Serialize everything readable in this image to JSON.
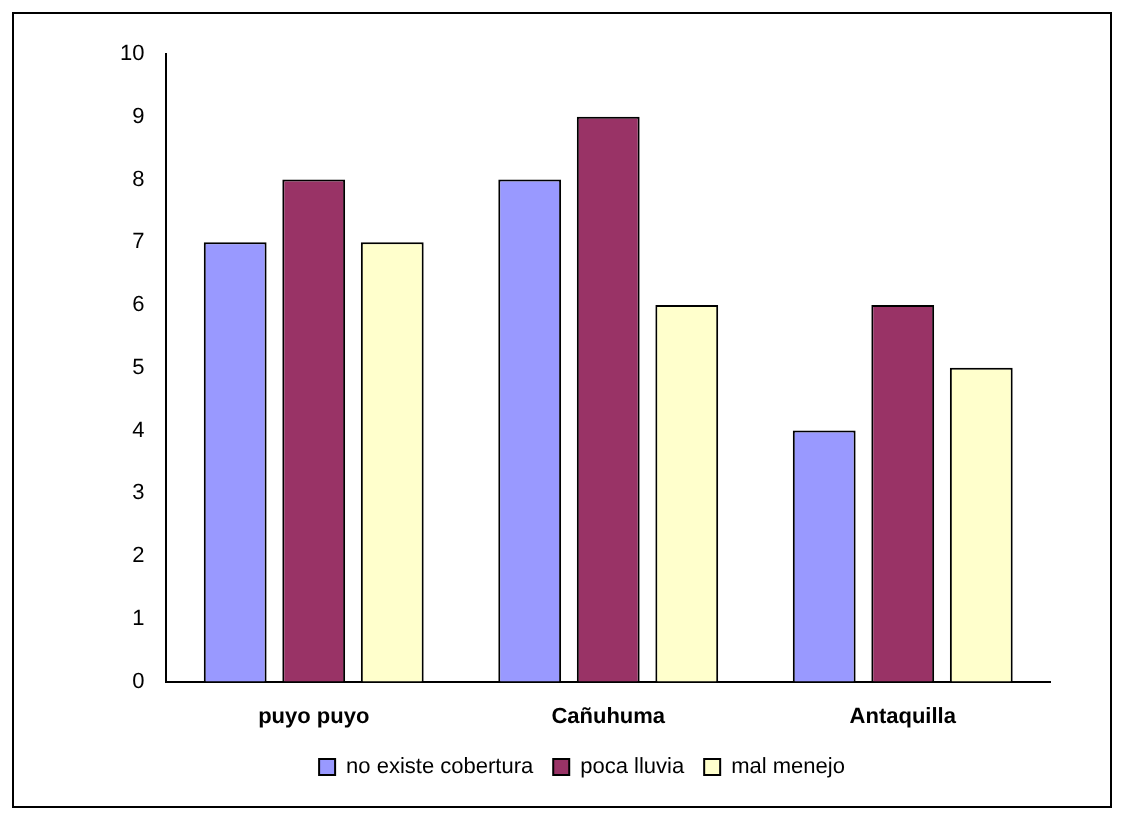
{
  "chart_data": {
    "type": "bar",
    "categories": [
      "puyo puyo",
      "Cañuhuma",
      "Antaquilla"
    ],
    "series": [
      {
        "name": "no existe cobertura",
        "color": "#9999ff",
        "values": [
          7,
          8,
          4
        ]
      },
      {
        "name": "poca lluvia",
        "color": "#993366",
        "values": [
          8,
          9,
          6
        ]
      },
      {
        "name": "mal menejo",
        "color": "#ffffcc",
        "values": [
          7,
          6,
          5
        ]
      }
    ],
    "ylim": [
      0,
      10
    ],
    "yticks": [
      0,
      1,
      2,
      3,
      4,
      5,
      6,
      7,
      8,
      9,
      10
    ],
    "grid": false,
    "legend": "bottom"
  }
}
